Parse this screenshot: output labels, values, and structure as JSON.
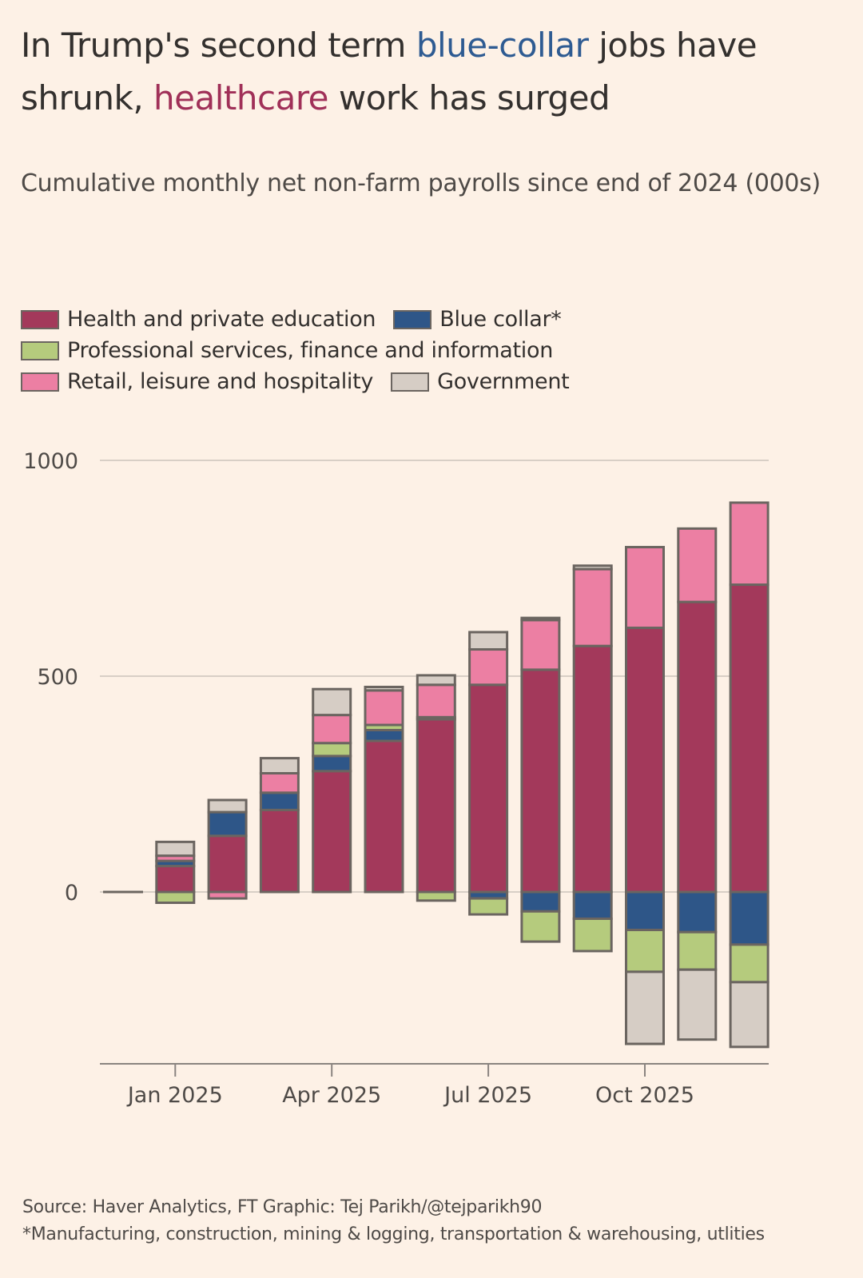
{
  "title": {
    "part1": "In Trump's second term ",
    "highlight_blue": "blue-collar",
    "part2": " jobs have shrunk, ",
    "highlight_red": "healthcare",
    "part3": " work has surged"
  },
  "colors": {
    "background": "#fdf1e6",
    "title_blue": "#2e5b92",
    "title_red": "#a03058",
    "outline": "#6b6560",
    "gridline": "#d8cfc6"
  },
  "chart_data": {
    "type": "bar",
    "stacked": true,
    "title": "In Trump's second term blue-collar jobs have shrunk, healthcare work has surged",
    "subtitle": "Cumulative monthly net non-farm payrolls since end of 2024 (000s)",
    "xlabel": "",
    "ylabel": "",
    "ylim": [
      -400,
      1000
    ],
    "yticks": [
      0,
      500,
      1000
    ],
    "grid": true,
    "legend_position": "top-left",
    "categories": [
      "Dec 2024",
      "Jan 2025",
      "Feb 2025",
      "Mar 2025",
      "Apr 2025",
      "May 2025",
      "Jun 2025",
      "Jul 2025",
      "Aug 2025",
      "Sep 2025",
      "Oct 2025",
      "Nov 2025",
      "Dec 2025"
    ],
    "xtick_labels": [
      {
        "label": "Jan 2025",
        "category": "Jan 2025"
      },
      {
        "label": "Apr 2025",
        "category": "Apr 2025"
      },
      {
        "label": "Jul 2025",
        "category": "Jul 2025"
      },
      {
        "label": "Oct 2025",
        "category": "Oct 2025"
      }
    ],
    "series": [
      {
        "name": "Health and private education",
        "color": "#a3395b",
        "values": [
          0,
          60,
          130,
          190,
          280,
          350,
          400,
          480,
          515,
          570,
          612,
          672,
          712
        ]
      },
      {
        "name": "Blue collar*",
        "color": "#2e5688",
        "values": [
          0,
          12,
          55,
          40,
          35,
          25,
          5,
          -15,
          -45,
          -62,
          -88,
          -93,
          -122
        ]
      },
      {
        "name": "Professional services, finance and information",
        "color": "#b5cb7d",
        "values": [
          0,
          -25,
          0,
          0,
          30,
          12,
          -20,
          -37,
          -70,
          -75,
          -97,
          -87,
          -87
        ]
      },
      {
        "name": "Retail, leisure and hospitality",
        "color": "#ec7fa3",
        "values": [
          0,
          12,
          -15,
          45,
          65,
          80,
          75,
          82,
          115,
          178,
          187,
          170,
          190
        ]
      },
      {
        "name": "Government",
        "color": "#d6cdc5",
        "values": [
          0,
          32,
          28,
          35,
          60,
          8,
          22,
          40,
          5,
          8,
          -167,
          -162,
          -150
        ]
      }
    ]
  },
  "legend": {
    "rows": [
      [
        0,
        1
      ],
      [
        2
      ],
      [
        3,
        4
      ]
    ]
  },
  "footer": {
    "source": "Source: Haver Analytics, FT Graphic: Tej Parikh/@tejparikh90",
    "note": "*Manufacturing, construction, mining & logging, transportation & warehousing, utlities"
  }
}
